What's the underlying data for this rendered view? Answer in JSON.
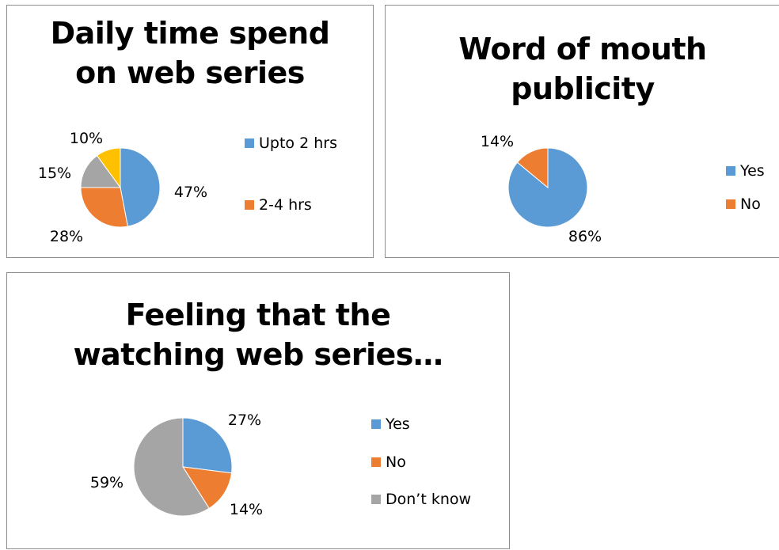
{
  "chart_data": [
    {
      "type": "pie",
      "title_lines": [
        "Daily time spend",
        "on web series"
      ],
      "slices": [
        {
          "label": "Upto 2 hrs",
          "value": 47,
          "color": "#5B9BD5",
          "display": "47%"
        },
        {
          "label": "2-4 hrs",
          "value": 28,
          "color": "#ED7D31",
          "display": "28%"
        },
        {
          "label": "",
          "value": 15,
          "color": "#A5A5A5",
          "display": "15%"
        },
        {
          "label": "",
          "value": 10,
          "color": "#FFC000",
          "display": "10%"
        }
      ],
      "legend": [
        "Upto 2 hrs",
        "2-4 hrs"
      ],
      "legend_position": "right"
    },
    {
      "type": "pie",
      "title_lines": [
        "Word of mouth",
        "publicity"
      ],
      "slices": [
        {
          "label": "Yes",
          "value": 86,
          "color": "#5B9BD5",
          "display": "86%"
        },
        {
          "label": "No",
          "value": 14,
          "color": "#ED7D31",
          "display": "14%"
        }
      ],
      "legend": [
        "Yes",
        "No"
      ],
      "legend_position": "right"
    },
    {
      "type": "pie",
      "title_lines": [
        "Feeling that the",
        "watching web series…"
      ],
      "slices": [
        {
          "label": "Yes",
          "value": 27,
          "color": "#5B9BD5",
          "display": "27%"
        },
        {
          "label": "No",
          "value": 14,
          "color": "#ED7D31",
          "display": "14%"
        },
        {
          "label": "Don’t know",
          "value": 59,
          "color": "#A5A5A5",
          "display": "59%"
        }
      ],
      "legend": [
        "Yes",
        "No",
        "Don’t know"
      ],
      "legend_position": "right"
    }
  ]
}
